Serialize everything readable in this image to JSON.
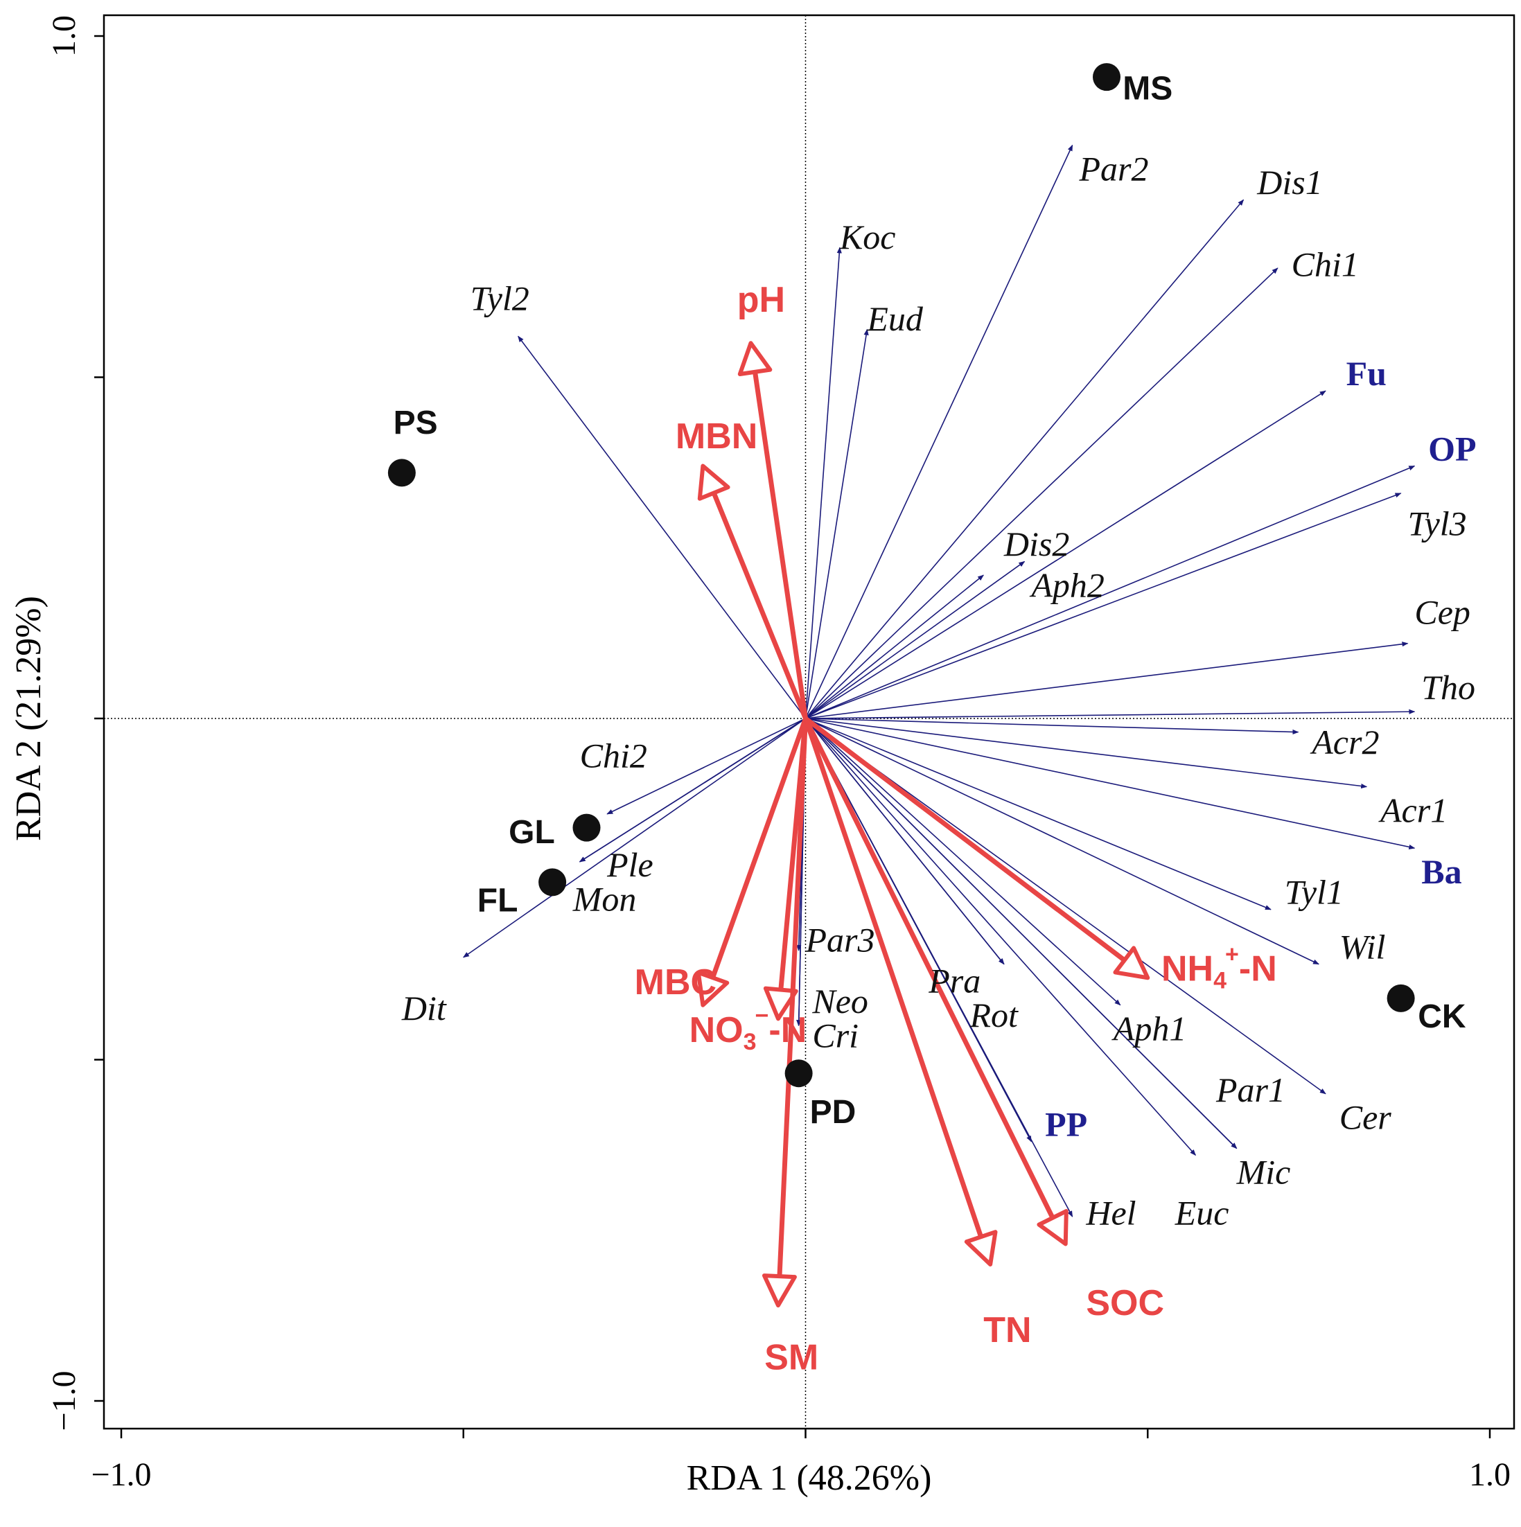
{
  "chart_data": {
    "type": "biplot",
    "xlabel": "RDA 1 (48.26%)",
    "ylabel": "RDA 2 (21.29%)",
    "xlim": [
      -1.0,
      1.0
    ],
    "ylim": [
      -1.0,
      1.0
    ],
    "x_ticks": [
      {
        "v": -1.0,
        "label": "−1.0"
      },
      {
        "v": -0.5,
        "label": ""
      },
      {
        "v": 0,
        "label": ""
      },
      {
        "v": 0.5,
        "label": ""
      },
      {
        "v": 1.0,
        "label": "1.0"
      }
    ],
    "y_ticks": [
      {
        "v": -1.0,
        "label": "−1.0"
      },
      {
        "v": -0.5,
        "label": ""
      },
      {
        "v": 0,
        "label": ""
      },
      {
        "v": 0.5,
        "label": ""
      },
      {
        "v": 1.0,
        "label": "1.0"
      }
    ],
    "colors": {
      "species": "#1a1a7a",
      "group": "#1f1f8f",
      "environment": "#e84545",
      "site": "#111111",
      "axis": "#000000"
    },
    "species": [
      {
        "name": "Par2",
        "x": 0.39,
        "y": 0.84,
        "lx": 0.4,
        "ly": 0.8
      },
      {
        "name": "Dis1",
        "x": 0.64,
        "y": 0.76,
        "lx": 0.66,
        "ly": 0.78
      },
      {
        "name": "Koc",
        "x": 0.05,
        "y": 0.69,
        "lx": 0.05,
        "ly": 0.7
      },
      {
        "name": "Chi1",
        "x": 0.69,
        "y": 0.66,
        "lx": 0.71,
        "ly": 0.66
      },
      {
        "name": "Eud",
        "x": 0.09,
        "y": 0.57,
        "lx": 0.09,
        "ly": 0.58
      },
      {
        "name": "Tyl2",
        "x": -0.42,
        "y": 0.56,
        "lx": -0.49,
        "ly": 0.61
      },
      {
        "name": "Fu",
        "x": 0.76,
        "y": 0.48,
        "lx": 0.79,
        "ly": 0.5,
        "group": true
      },
      {
        "name": "OP",
        "x": 0.89,
        "y": 0.37,
        "lx": 0.91,
        "ly": 0.39,
        "group": true
      },
      {
        "name": "Tyl3",
        "x": 0.87,
        "y": 0.33,
        "lx": 0.88,
        "ly": 0.28
      },
      {
        "name": "Dis2",
        "x": 0.32,
        "y": 0.23,
        "lx": 0.29,
        "ly": 0.25
      },
      {
        "name": "Aph2",
        "x": 0.26,
        "y": 0.21,
        "lx": 0.33,
        "ly": 0.19
      },
      {
        "name": "Cep",
        "x": 0.88,
        "y": 0.11,
        "lx": 0.89,
        "ly": 0.15
      },
      {
        "name": "Tho",
        "x": 0.89,
        "y": 0.01,
        "lx": 0.9,
        "ly": 0.04
      },
      {
        "name": "Acr2",
        "x": 0.72,
        "y": -0.02,
        "lx": 0.74,
        "ly": -0.04
      },
      {
        "name": "Acr1",
        "x": 0.82,
        "y": -0.1,
        "lx": 0.84,
        "ly": -0.14
      },
      {
        "name": "Ba",
        "x": 0.89,
        "y": -0.19,
        "lx": 0.9,
        "ly": -0.23,
        "group": true
      },
      {
        "name": "Tyl1",
        "x": 0.68,
        "y": -0.28,
        "lx": 0.7,
        "ly": -0.26
      },
      {
        "name": "Wil",
        "x": 0.75,
        "y": -0.36,
        "lx": 0.78,
        "ly": -0.34
      },
      {
        "name": "Chi2",
        "x": -0.29,
        "y": -0.14,
        "lx": -0.33,
        "ly": -0.06
      },
      {
        "name": "Ple",
        "x": -0.33,
        "y": -0.21,
        "lx": -0.29,
        "ly": -0.22
      },
      {
        "name": "Mon",
        "x": -0.33,
        "y": -0.21,
        "lx": -0.34,
        "ly": -0.27
      },
      {
        "name": "Dit",
        "x": -0.5,
        "y": -0.35,
        "lx": -0.59,
        "ly": -0.43
      },
      {
        "name": "Par3",
        "x": -0.01,
        "y": -0.34,
        "lx": 0.0,
        "ly": -0.33
      },
      {
        "name": "Neo",
        "x": -0.01,
        "y": -0.45,
        "lx": 0.01,
        "ly": -0.42
      },
      {
        "name": "Cri",
        "x": -0.01,
        "y": -0.45,
        "lx": 0.01,
        "ly": -0.47
      },
      {
        "name": "Pra",
        "x": 0.29,
        "y": -0.36,
        "lx": 0.18,
        "ly": -0.39
      },
      {
        "name": "Rot",
        "x": 0.29,
        "y": -0.36,
        "lx": 0.24,
        "ly": -0.44
      },
      {
        "name": "Aph1",
        "x": 0.46,
        "y": -0.42,
        "lx": 0.45,
        "ly": -0.46
      },
      {
        "name": "PP",
        "x": 0.33,
        "y": -0.62,
        "lx": 0.35,
        "ly": -0.6,
        "group": true
      },
      {
        "name": "Par1",
        "x": 0.63,
        "y": -0.63,
        "lx": 0.6,
        "ly": -0.55
      },
      {
        "name": "Mic",
        "x": 0.63,
        "y": -0.63,
        "lx": 0.63,
        "ly": -0.67
      },
      {
        "name": "Cer",
        "x": 0.76,
        "y": -0.55,
        "lx": 0.78,
        "ly": -0.59
      },
      {
        "name": "Hel",
        "x": 0.57,
        "y": -0.64,
        "lx": 0.41,
        "ly": -0.73
      },
      {
        "name": "Euc",
        "x": 0.39,
        "y": -0.73,
        "lx": 0.54,
        "ly": -0.73
      }
    ],
    "environment": [
      {
        "name": "pH",
        "x": -0.08,
        "y": 0.55,
        "lx": -0.1,
        "ly": 0.61
      },
      {
        "name": "MBN",
        "x": -0.15,
        "y": 0.37,
        "lx": -0.19,
        "ly": 0.41
      },
      {
        "name": "MBC",
        "x": -0.15,
        "y": -0.42,
        "lx": -0.25,
        "ly": -0.39
      },
      {
        "name": "NO3-N",
        "base": "NO",
        "sub": "3",
        "sup": "−",
        "suffix": "-N",
        "x": -0.04,
        "y": -0.44,
        "lx": -0.17,
        "ly": -0.46
      },
      {
        "name": "SM",
        "x": -0.04,
        "y": -0.86,
        "lx": -0.06,
        "ly": -0.94
      },
      {
        "name": "TN",
        "x": 0.27,
        "y": -0.8,
        "lx": 0.26,
        "ly": -0.9
      },
      {
        "name": "SOC",
        "x": 0.38,
        "y": -0.77,
        "lx": 0.41,
        "ly": -0.86
      },
      {
        "name": "NH4+-N",
        "base": "NH",
        "sub": "4",
        "sup": "+",
        "suffix": "-N",
        "x": 0.5,
        "y": -0.38,
        "lx": 0.52,
        "ly": -0.37
      }
    ],
    "sites": [
      {
        "name": "MS",
        "x": 0.44,
        "y": 0.94,
        "lx": 0.5,
        "ly": 0.92
      },
      {
        "name": "PS",
        "x": -0.59,
        "y": 0.36,
        "lx": -0.57,
        "ly": 0.43
      },
      {
        "name": "GL",
        "x": -0.32,
        "y": -0.16,
        "lx": -0.4,
        "ly": -0.17
      },
      {
        "name": "FL",
        "x": -0.37,
        "y": -0.24,
        "lx": -0.45,
        "ly": -0.27
      },
      {
        "name": "PD",
        "x": -0.01,
        "y": -0.52,
        "lx": 0.04,
        "ly": -0.58
      },
      {
        "name": "CK",
        "x": 0.87,
        "y": -0.41,
        "lx": 0.93,
        "ly": -0.44
      }
    ]
  }
}
